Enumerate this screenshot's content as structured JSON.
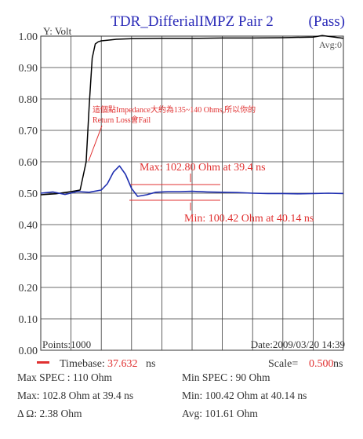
{
  "chart_data": {
    "type": "line",
    "title": "TDR_DifferialIMPZ Pair 2",
    "status": "(Pass)",
    "ylabel": "Y: Volt",
    "avg_label": "Avg:0",
    "ylim": [
      0,
      1
    ],
    "y_ticks": [
      "0.00",
      "0.10",
      "0.20",
      "0.30",
      "0.40",
      "0.50",
      "0.60",
      "0.70",
      "0.80",
      "0.90",
      "1.00"
    ],
    "xlim": [
      0,
      10
    ],
    "series": [
      {
        "color": "#000000",
        "x": [
          0,
          0.5,
          1.0,
          1.3,
          1.5,
          1.6,
          1.7,
          1.8,
          1.9,
          2.0,
          2.2,
          2.5,
          3.0,
          4.0,
          5.0,
          6.0,
          7.0,
          8.0,
          9.0,
          9.3,
          9.6,
          10.0
        ],
        "y": [
          0.495,
          0.498,
          0.505,
          0.51,
          0.6,
          0.78,
          0.93,
          0.975,
          0.982,
          0.985,
          0.987,
          0.99,
          0.992,
          0.993,
          0.993,
          0.994,
          0.994,
          0.995,
          0.997,
          1.002,
          0.998,
          0.993
        ]
      },
      {
        "color": "#1f2fb0",
        "x": [
          0,
          0.4,
          0.8,
          1.2,
          1.6,
          2.0,
          2.2,
          2.4,
          2.6,
          2.8,
          3.0,
          3.2,
          3.5,
          3.8,
          4.2,
          4.6,
          5.0,
          5.5,
          6.0,
          6.5,
          7.0,
          7.5,
          8.0,
          8.5,
          9.0,
          9.5,
          10.0
        ],
        "y": [
          0.5,
          0.504,
          0.496,
          0.505,
          0.503,
          0.51,
          0.53,
          0.567,
          0.587,
          0.56,
          0.515,
          0.49,
          0.495,
          0.503,
          0.505,
          0.505,
          0.506,
          0.504,
          0.503,
          0.502,
          0.5,
          0.499,
          0.499,
          0.498,
          0.499,
          0.5,
          0.499
        ]
      }
    ],
    "annotations": {
      "note_line1": "這個點Impedance大約為135~140 Ohms,所以你的",
      "note_line2": "Return Loss會Fail",
      "max_label": "Max: 102.80 Ohm at 39.4 ns",
      "min_label": "Min: 100.42 Ohm at 40.14 ns",
      "points": "Points:1000",
      "date": "Date:2009/03/20 14:39"
    },
    "timebase_label": "Timebase:",
    "timebase_value": "37.632",
    "timebase_unit": "ns",
    "scale_label": "Scale=",
    "scale_value": "0.500",
    "scale_unit": "ns",
    "colors": {
      "grid": "#3a3a3a",
      "curve_tdr": "#000000",
      "curve_impedance": "#1f2fb0",
      "annotation": "#e03030",
      "title": "#2b2bb8"
    }
  },
  "summary": {
    "max_spec": "Max SPEC : 110 Ohm",
    "min_spec": "Min SPEC : 90 Ohm",
    "max": "Max: 102.8 Ohm at 39.4 ns",
    "min": "Min: 100.42 Ohm at 40.14 ns",
    "delta": "Δ Ω: 2.38 Ohm",
    "avg": "Avg: 101.61 Ohm"
  }
}
